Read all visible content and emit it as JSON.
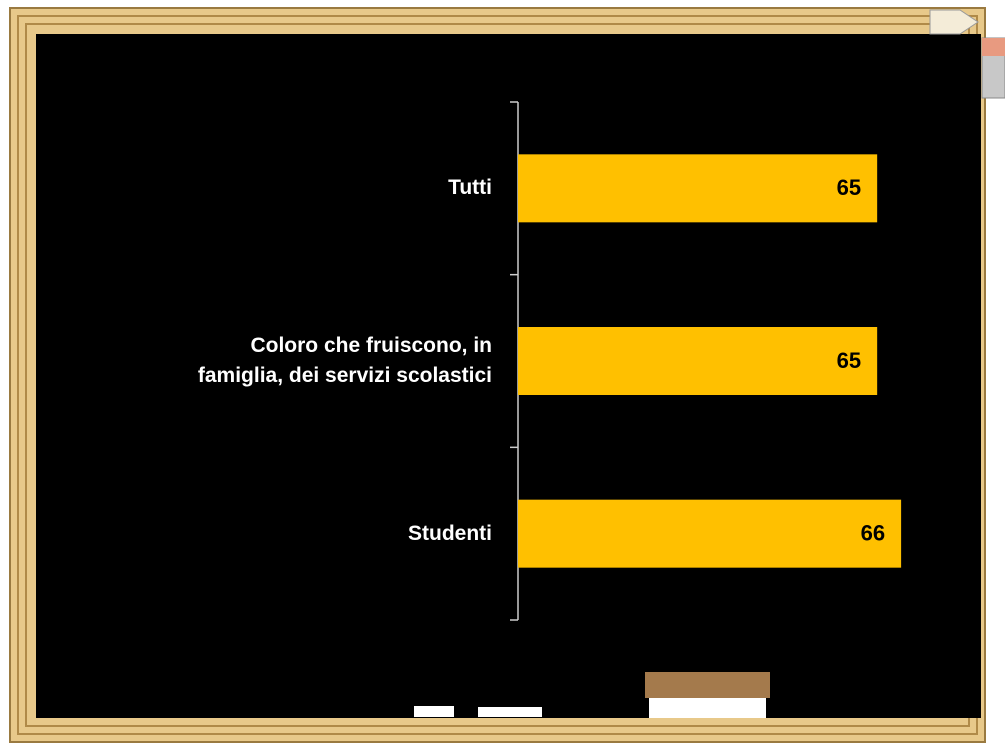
{
  "chart_data": {
    "type": "bar",
    "orientation": "horizontal",
    "categories": [
      "Tutti",
      "Coloro che fruiscono, in famiglia, dei servizi scolastici",
      "Studenti"
    ],
    "values": [
      65,
      65,
      66
    ],
    "color": "#ffc000",
    "xlim": [
      50,
      68
    ]
  }
}
